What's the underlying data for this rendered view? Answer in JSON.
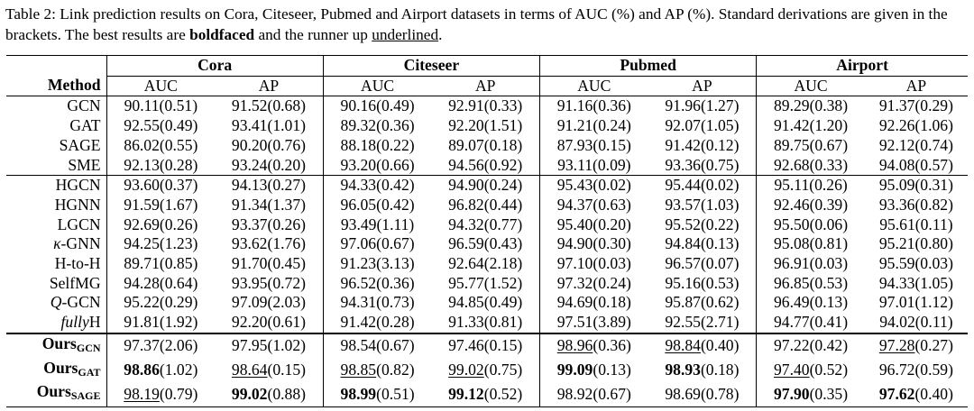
{
  "caption": {
    "part1": "Table 2: Link prediction results on Cora, Citeseer, Pubmed and Airport datasets in terms of AUC (%) and AP (%). Standard derivations are given in the brackets. The best results are ",
    "bold_word": "boldfaced",
    "part2": " and the runner up ",
    "underlined_word": "underlined",
    "part3": "."
  },
  "header": {
    "method": "Method",
    "datasets": [
      "Cora",
      "Citeseer",
      "Pubmed",
      "Airport"
    ],
    "metrics": [
      "AUC",
      "AP",
      "AUC",
      "AP",
      "AUC",
      "AP",
      "AUC",
      "AP"
    ]
  },
  "groups": [
    {
      "rows": [
        {
          "method": "GCN",
          "cells": [
            {
              "v": "90.11",
              "s": "(0.51)"
            },
            {
              "v": "91.52",
              "s": "(0.68)"
            },
            {
              "v": "90.16",
              "s": "(0.49)"
            },
            {
              "v": "92.91",
              "s": "(0.33)"
            },
            {
              "v": "91.16",
              "s": "(0.36)"
            },
            {
              "v": "91.96",
              "s": "(1.27)"
            },
            {
              "v": "89.29",
              "s": "(0.38)"
            },
            {
              "v": "91.37",
              "s": "(0.29)"
            }
          ]
        },
        {
          "method": "GAT",
          "cells": [
            {
              "v": "92.55",
              "s": "(0.49)"
            },
            {
              "v": "93.41",
              "s": "(1.01)"
            },
            {
              "v": "89.32",
              "s": "(0.36)"
            },
            {
              "v": "92.20",
              "s": "(1.51)"
            },
            {
              "v": "91.21",
              "s": "(0.24)"
            },
            {
              "v": "92.07",
              "s": "(1.05)"
            },
            {
              "v": "91.42",
              "s": "(1.20)"
            },
            {
              "v": "92.26",
              "s": "(1.06)"
            }
          ]
        },
        {
          "method": "SAGE",
          "cells": [
            {
              "v": "86.02",
              "s": "(0.55)"
            },
            {
              "v": "90.20",
              "s": "(0.76)"
            },
            {
              "v": "88.18",
              "s": "(0.22)"
            },
            {
              "v": "89.07",
              "s": "(0.18)"
            },
            {
              "v": "87.93",
              "s": "(0.15)"
            },
            {
              "v": "91.42",
              "s": "(0.12)"
            },
            {
              "v": "89.75",
              "s": "(0.67)"
            },
            {
              "v": "92.12",
              "s": "(0.74)"
            }
          ]
        },
        {
          "method": "SME",
          "cells": [
            {
              "v": "92.13",
              "s": "(0.28)"
            },
            {
              "v": "93.24",
              "s": "(0.20)"
            },
            {
              "v": "93.20",
              "s": "(0.66)"
            },
            {
              "v": "94.56",
              "s": "(0.92)"
            },
            {
              "v": "93.11",
              "s": "(0.09)"
            },
            {
              "v": "93.36",
              "s": "(0.75)"
            },
            {
              "v": "92.68",
              "s": "(0.33)"
            },
            {
              "v": "94.08",
              "s": "(0.57)"
            }
          ]
        }
      ]
    },
    {
      "rows": [
        {
          "method": "HGCN",
          "cells": [
            {
              "v": "93.60",
              "s": "(0.37)"
            },
            {
              "v": "94.13",
              "s": "(0.27)"
            },
            {
              "v": "94.33",
              "s": "(0.42)"
            },
            {
              "v": "94.90",
              "s": "(0.24)"
            },
            {
              "v": "95.43",
              "s": "(0.02)"
            },
            {
              "v": "95.44",
              "s": "(0.02)"
            },
            {
              "v": "95.11",
              "s": "(0.26)"
            },
            {
              "v": "95.09",
              "s": "(0.31)"
            }
          ]
        },
        {
          "method": "HGNN",
          "cells": [
            {
              "v": "91.59",
              "s": "(1.67)"
            },
            {
              "v": "91.34",
              "s": "(1.37)"
            },
            {
              "v": "96.05",
              "s": "(0.42)"
            },
            {
              "v": "96.82",
              "s": "(0.44)"
            },
            {
              "v": "94.37",
              "s": "(0.63)"
            },
            {
              "v": "93.57",
              "s": "(1.03)"
            },
            {
              "v": "92.46",
              "s": "(0.39)"
            },
            {
              "v": "93.36",
              "s": "(0.82)"
            }
          ]
        },
        {
          "method": "LGCN",
          "cells": [
            {
              "v": "92.69",
              "s": "(0.26)"
            },
            {
              "v": "93.37",
              "s": "(0.26)"
            },
            {
              "v": "93.49",
              "s": "(1.11)"
            },
            {
              "v": "94.32",
              "s": "(0.77)"
            },
            {
              "v": "95.40",
              "s": "(0.20)"
            },
            {
              "v": "95.52",
              "s": "(0.22)"
            },
            {
              "v": "95.50",
              "s": "(0.06)"
            },
            {
              "v": "95.61",
              "s": "(0.11)"
            }
          ]
        },
        {
          "method": "κ-GNN",
          "cells": [
            {
              "v": "94.25",
              "s": "(1.23)"
            },
            {
              "v": "93.62",
              "s": "(1.76)"
            },
            {
              "v": "97.06",
              "s": "(0.67)"
            },
            {
              "v": "96.59",
              "s": "(0.43)"
            },
            {
              "v": "94.90",
              "s": "(0.30)"
            },
            {
              "v": "94.84",
              "s": "(0.13)"
            },
            {
              "v": "95.08",
              "s": "(0.81)"
            },
            {
              "v": "95.21",
              "s": "(0.80)"
            }
          ]
        },
        {
          "method": "H-to-H",
          "cells": [
            {
              "v": "89.71",
              "s": "(0.85)"
            },
            {
              "v": "91.70",
              "s": "(0.45)"
            },
            {
              "v": "91.23",
              "s": "(3.13)"
            },
            {
              "v": "92.64",
              "s": "(2.18)"
            },
            {
              "v": "97.10",
              "s": "(0.03)"
            },
            {
              "v": "96.57",
              "s": "(0.07)"
            },
            {
              "v": "96.91",
              "s": "(0.03)"
            },
            {
              "v": "95.59",
              "s": "(0.03)"
            }
          ]
        },
        {
          "method": "SelfMG",
          "cells": [
            {
              "v": "94.28",
              "s": "(0.64)"
            },
            {
              "v": "93.95",
              "s": "(0.72)"
            },
            {
              "v": "96.52",
              "s": "(0.36)"
            },
            {
              "v": "95.77",
              "s": "(1.52)"
            },
            {
              "v": "97.32",
              "s": "(0.24)"
            },
            {
              "v": "95.16",
              "s": "(0.53)"
            },
            {
              "v": "96.85",
              "s": "(0.53)"
            },
            {
              "v": "94.33",
              "s": "(1.05)"
            }
          ]
        },
        {
          "method": "Q-GCN",
          "cells": [
            {
              "v": "95.22",
              "s": "(0.29)"
            },
            {
              "v": "97.09",
              "s": "(2.03)"
            },
            {
              "v": "94.31",
              "s": "(0.73)"
            },
            {
              "v": "94.85",
              "s": "(0.49)"
            },
            {
              "v": "94.69",
              "s": "(0.18)"
            },
            {
              "v": "95.87",
              "s": "(0.62)"
            },
            {
              "v": "96.49",
              "s": "(0.13)"
            },
            {
              "v": "97.01",
              "s": "(1.12)"
            }
          ]
        },
        {
          "method": "fullyH",
          "cells": [
            {
              "v": "91.81",
              "s": "(1.92)"
            },
            {
              "v": "92.20",
              "s": "(0.61)"
            },
            {
              "v": "91.42",
              "s": "(0.28)"
            },
            {
              "v": "91.33",
              "s": "(0.81)"
            },
            {
              "v": "97.51",
              "s": "(3.89)"
            },
            {
              "v": "92.55",
              "s": "(2.71)"
            },
            {
              "v": "94.77",
              "s": "(0.41)"
            },
            {
              "v": "94.02",
              "s": "(0.11)"
            }
          ]
        }
      ]
    },
    {
      "rows": [
        {
          "method": "Ours",
          "sub": "GCN",
          "cells": [
            {
              "v": "97.37",
              "s": "(2.06)"
            },
            {
              "v": "97.95",
              "s": "(1.02)"
            },
            {
              "v": "98.54",
              "s": "(0.67)"
            },
            {
              "v": "97.46",
              "s": "(0.15)"
            },
            {
              "v": "98.96",
              "s": "(0.36)",
              "u": true
            },
            {
              "v": "98.84",
              "s": "(0.40)",
              "u": true
            },
            {
              "v": "97.22",
              "s": "(0.42)"
            },
            {
              "v": "97.28",
              "s": "(0.27)",
              "u": true
            }
          ]
        },
        {
          "method": "Ours",
          "sub": "GAT",
          "cells": [
            {
              "v": "98.86",
              "s": "(1.02)",
              "b": true
            },
            {
              "v": "98.64",
              "s": "(0.15)",
              "u": true
            },
            {
              "v": "98.85",
              "s": "(0.82)",
              "u": true
            },
            {
              "v": "99.02",
              "s": "(0.75)",
              "u": true
            },
            {
              "v": "99.09",
              "s": "(0.13)",
              "b": true
            },
            {
              "v": "98.93",
              "s": "(0.18)",
              "b": true
            },
            {
              "v": "97.40",
              "s": "(0.52)",
              "u": true
            },
            {
              "v": "96.72",
              "s": "(0.59)"
            }
          ]
        },
        {
          "method": "Ours",
          "sub": "SAGE",
          "cells": [
            {
              "v": "98.19",
              "s": "(0.79)",
              "u": true
            },
            {
              "v": "99.02",
              "s": "(0.88)",
              "b": true
            },
            {
              "v": "98.99",
              "s": "(0.51)",
              "b": true
            },
            {
              "v": "99.12",
              "s": "(0.52)",
              "b": true
            },
            {
              "v": "98.92",
              "s": "(0.67)"
            },
            {
              "v": "98.69",
              "s": "(0.78)"
            },
            {
              "v": "97.90",
              "s": "(0.35)",
              "b": true
            },
            {
              "v": "97.62",
              "s": "(0.40)",
              "b": true
            }
          ]
        }
      ]
    }
  ]
}
